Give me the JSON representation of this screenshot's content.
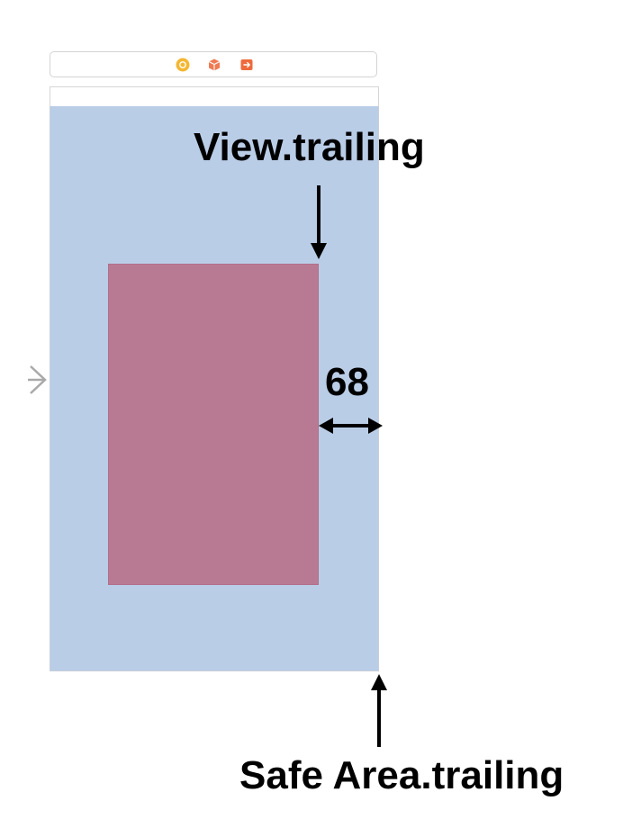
{
  "scene_dock": {
    "icons": [
      "view-controller-icon",
      "first-responder-icon",
      "exit-icon"
    ],
    "icon_colors": {
      "view_controller": "#f5b731",
      "first_responder": "#f07a52",
      "exit": "#ee6a3c"
    }
  },
  "canvas": {
    "safe_area_color": "#bacde7",
    "subview_color": "#b87a93",
    "entry_arrow_icon": "chevron-right-icon"
  },
  "annotations": {
    "view_trailing": "View.trailing",
    "gap_value": "68",
    "safe_area_trailing": "Safe Area.trailing"
  }
}
